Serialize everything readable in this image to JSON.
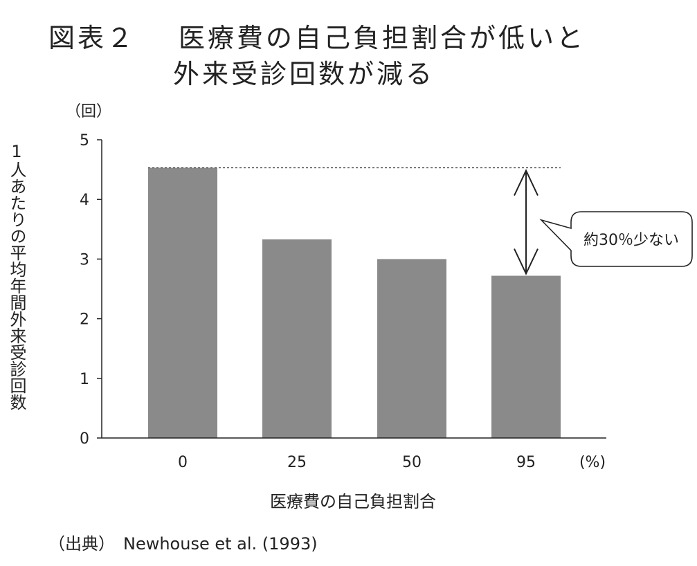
{
  "header": {
    "figure_number": "図表２",
    "title_line1": "医療費の自己負担割合が低いと",
    "title_line2": "外来受診回数が減る"
  },
  "source": "（出典）　Newhouse et al. (1993)",
  "callout": "約30％少ない",
  "colors": {
    "bar": "#8a8a8a",
    "axis": "#222222"
  },
  "chart_data": {
    "type": "bar",
    "categories": [
      "0",
      "25",
      "50",
      "95"
    ],
    "values": [
      4.53,
      3.33,
      3.0,
      2.72
    ],
    "ylim": [
      0,
      5
    ],
    "yticks": [
      "0",
      "1",
      "2",
      "3",
      "4",
      "5"
    ],
    "xlabel": "医療費の自己負担割合",
    "ylabel": "1人あたりの平均年間外来受診回数",
    "y_unit": "（回）",
    "x_unit": "(%)",
    "reference_line": 4.53,
    "grid": false
  }
}
